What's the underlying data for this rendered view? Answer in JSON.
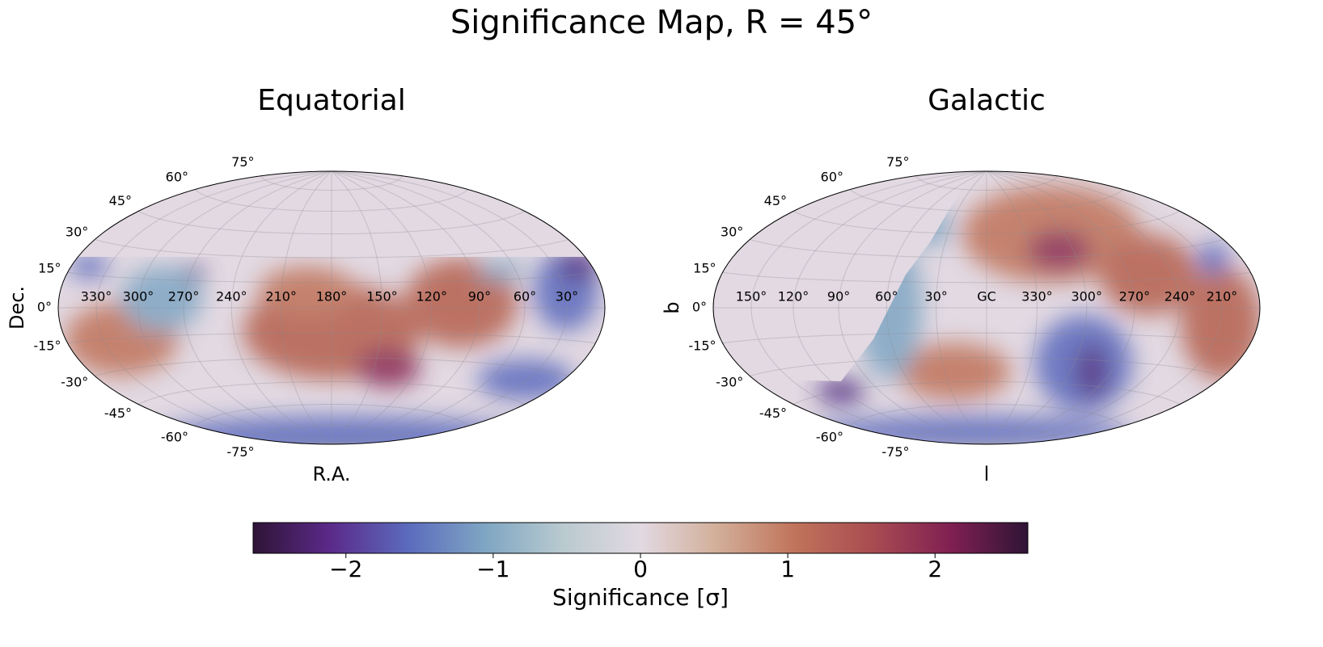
{
  "title": "Significance Map, R = 45°",
  "chart_data": [
    {
      "type": "skymap",
      "title": "Equatorial",
      "x_label": "R.A.",
      "y_label": "Dec.",
      "center_lon": 180,
      "lon_ticks": [
        {
          "value": 330,
          "label": "330°"
        },
        {
          "value": 300,
          "label": "300°"
        },
        {
          "value": 270,
          "label": "270°"
        },
        {
          "value": 240,
          "label": "240°"
        },
        {
          "value": 210,
          "label": "210°"
        },
        {
          "value": 180,
          "label": "180°"
        },
        {
          "value": 150,
          "label": "150°"
        },
        {
          "value": 120,
          "label": "120°"
        },
        {
          "value": 90,
          "label": "90°"
        },
        {
          "value": 60,
          "label": "60°"
        },
        {
          "value": 30,
          "label": "30°"
        }
      ],
      "lat_ticks": [
        {
          "value": 75,
          "label": "75°"
        },
        {
          "value": 60,
          "label": "60°"
        },
        {
          "value": 45,
          "label": "45°"
        },
        {
          "value": 30,
          "label": "30°"
        },
        {
          "value": 15,
          "label": "15°"
        },
        {
          "value": 0,
          "label": "0°"
        },
        {
          "value": -15,
          "label": "-15°"
        },
        {
          "value": -30,
          "label": "-30°"
        },
        {
          "value": -45,
          "label": "-45°"
        },
        {
          "value": -60,
          "label": "-60°"
        },
        {
          "value": -75,
          "label": "-75°"
        }
      ]
    },
    {
      "type": "skymap",
      "title": "Galactic",
      "x_label": "l",
      "y_label": "b",
      "center_lon": 0,
      "lon_ticks": [
        {
          "value": 150,
          "label": "150°"
        },
        {
          "value": 120,
          "label": "120°"
        },
        {
          "value": 90,
          "label": "90°"
        },
        {
          "value": 60,
          "label": "60°"
        },
        {
          "value": 30,
          "label": "30°"
        },
        {
          "value": 0,
          "label": "GC"
        },
        {
          "value": 330,
          "label": "330°"
        },
        {
          "value": 300,
          "label": "300°"
        },
        {
          "value": 270,
          "label": "270°"
        },
        {
          "value": 240,
          "label": "240°"
        },
        {
          "value": 210,
          "label": "210°"
        }
      ],
      "lat_ticks": [
        {
          "value": 75,
          "label": "75°"
        },
        {
          "value": 60,
          "label": "60°"
        },
        {
          "value": 45,
          "label": "45°"
        },
        {
          "value": 30,
          "label": "30°"
        },
        {
          "value": 15,
          "label": "15°"
        },
        {
          "value": 0,
          "label": "0°"
        },
        {
          "value": -15,
          "label": "-15°"
        },
        {
          "value": -30,
          "label": "-30°"
        },
        {
          "value": -45,
          "label": "-45°"
        },
        {
          "value": -60,
          "label": "-60°"
        },
        {
          "value": -75,
          "label": "-75°"
        }
      ]
    },
    {
      "type": "colorbar",
      "x_label": "Significance [σ]",
      "xlim": [
        -2.63,
        2.63
      ],
      "xticks": [
        {
          "value": -2,
          "label": "−2"
        },
        {
          "value": -1,
          "label": "−1"
        },
        0,
        1,
        2
      ],
      "colors": [
        "#2f1436",
        "#5b2a8a",
        "#5b6bbd",
        "#7fa6c3",
        "#b9cacf",
        "#e2d9e2",
        "#d2ae98",
        "#c0735a",
        "#a84c52",
        "#802052",
        "#2f1436"
      ]
    }
  ]
}
